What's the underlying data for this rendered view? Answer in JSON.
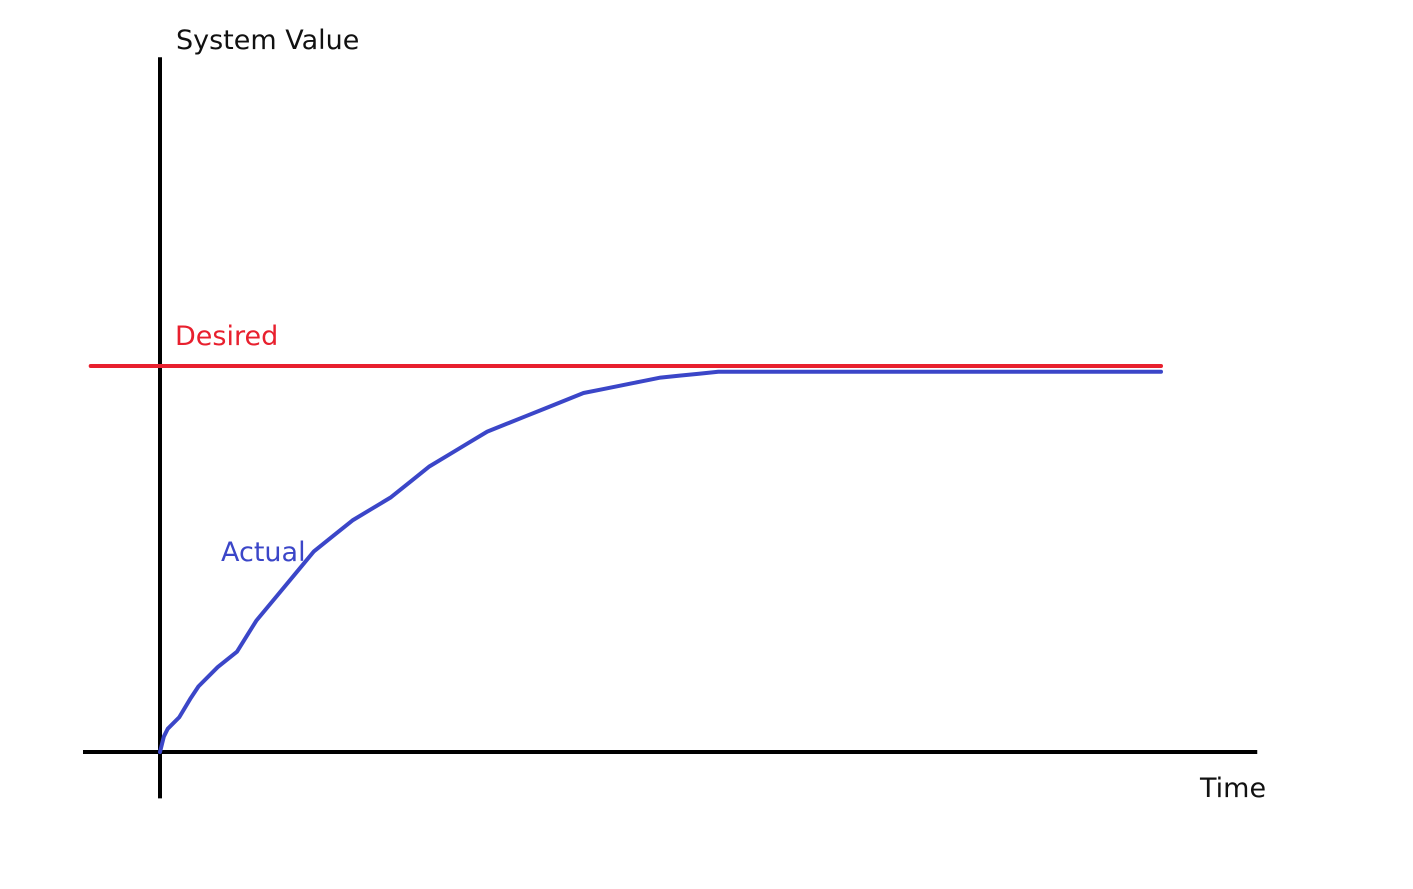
{
  "chart_data": {
    "type": "line",
    "title": "",
    "xlabel": "Time",
    "ylabel": "System Value",
    "xlim": [
      -0.2,
      2.85
    ],
    "ylim": [
      -0.12,
      1.8
    ],
    "grid": false,
    "colors": {
      "axes": "#000000",
      "desired": "#e8202e",
      "actual": "#3b46c8"
    },
    "series": [
      {
        "name": "Desired",
        "x": [
          -0.18,
          2.6
        ],
        "y": [
          1.0,
          1.0
        ]
      },
      {
        "name": "Actual",
        "x": [
          0,
          0.01,
          0.02,
          0.05,
          0.08,
          0.1,
          0.15,
          0.2,
          0.25,
          0.3,
          0.35,
          0.4,
          0.45,
          0.5,
          0.55,
          0.6,
          0.65,
          0.7,
          0.75,
          0.8,
          0.85,
          0.9,
          0.95,
          1.0,
          1.05,
          1.1,
          1.15,
          1.2,
          1.25,
          1.3,
          1.35,
          1.4,
          1.45,
          2.6
        ],
        "y": [
          0,
          0.04,
          0.06,
          0.09,
          0.14,
          0.17,
          0.22,
          0.26,
          0.34,
          0.4,
          0.46,
          0.52,
          0.56,
          0.6,
          0.63,
          0.66,
          0.7,
          0.74,
          0.77,
          0.8,
          0.83,
          0.85,
          0.87,
          0.89,
          0.91,
          0.93,
          0.94,
          0.95,
          0.96,
          0.97,
          0.975,
          0.98,
          0.985,
          0.985
        ]
      }
    ]
  }
}
